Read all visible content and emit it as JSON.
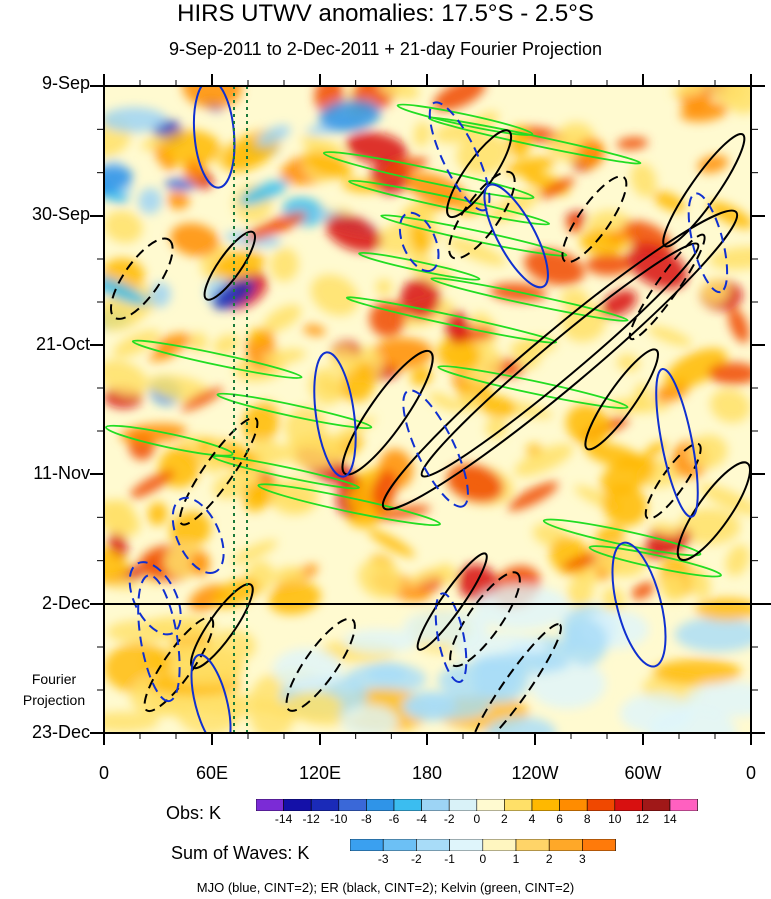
{
  "title": "HIRS UTWV anomalies: 17.5°S - 2.5°S",
  "subtitle": "9-Sep-2011 to 2-Dec-2011 + 21-day Fourier Projection",
  "fourier_label": [
    "Fourier",
    "Projection"
  ],
  "footer": "MJO (blue, CINT=2); ER (black, CINT=2); Kelvin (green, CINT=2)",
  "colorbars": {
    "obs": {
      "label": "Obs: K",
      "ticks": [
        "-14",
        "-12",
        "-10",
        "-8",
        "-6",
        "-4",
        "-2",
        "0",
        "2",
        "4",
        "6",
        "8",
        "10",
        "12",
        "14"
      ],
      "colors": [
        "#7b2bd6",
        "#1410a8",
        "#1a2ab8",
        "#3a68d8",
        "#2f94e8",
        "#3bbdf0",
        "#9dd4f5",
        "#d9f2f8",
        "#fffad0",
        "#ffe068",
        "#ffb800",
        "#ff8c00",
        "#f04800",
        "#d81010",
        "#a01818",
        "#ff60c0"
      ]
    },
    "sow": {
      "label": "Sum of Waves: K",
      "ticks": [
        "-3",
        "-2",
        "-1",
        "0",
        "1",
        "2",
        "3"
      ],
      "colors": [
        "#3aa0f0",
        "#6cc0f5",
        "#a8dcf8",
        "#dff5fb",
        "#fff6c0",
        "#ffd468",
        "#ffa828",
        "#ff7a0a"
      ]
    }
  },
  "chart_data": {
    "type": "heatmap",
    "title": "HIRS UTWV anomalies: 17.5°S - 2.5°S",
    "subtitle": "9-Sep-2011 to 2-Dec-2011 + 21-day Fourier Projection",
    "x_axis": {
      "ticks": [
        "0",
        "60E",
        "120E",
        "180",
        "120W",
        "60W",
        "0"
      ],
      "range_deg_east": [
        0,
        360
      ]
    },
    "y_axis": {
      "ticks": [
        "9-Sep",
        "30-Sep",
        "21-Oct",
        "11-Nov",
        "2-Dec",
        "23-Dec"
      ],
      "range": [
        "9-Sep-2011",
        "23-Dec-2011"
      ],
      "direction": "time increases downward"
    },
    "observation_end": "2-Dec",
    "projection": "21-day Fourier Projection",
    "contour_series": [
      {
        "name": "MJO",
        "color": "blue",
        "cint": 2
      },
      {
        "name": "ER",
        "color": "black",
        "cint": 2
      },
      {
        "name": "Kelvin",
        "color": "green",
        "cint": 2
      }
    ],
    "reference_lines_lon": [
      74,
      80
    ]
  }
}
